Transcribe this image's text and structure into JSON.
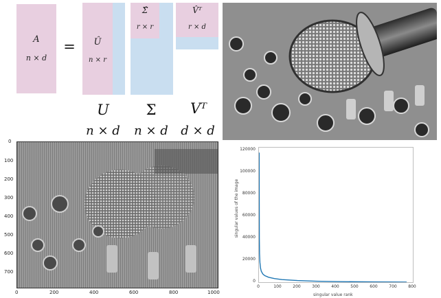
{
  "svd_diagram": {
    "A_label": "A",
    "A_dims": "n × d",
    "equals": "=",
    "U_hat_label": "Û",
    "U_hat_dims": "n × r",
    "Sigma_hat_label": "Σ̂",
    "Sigma_hat_dims": "r × r",
    "V_hat_label": "V̂ᵀ",
    "V_hat_dims": "r × d",
    "U_label": "U",
    "U_dims": "n × d",
    "Sigma_label": "Σ",
    "Sigma_dims": "n × d",
    "V_label": "Vᵀ",
    "V_dims": "d × d",
    "colors": {
      "pink": "#e8cfe0",
      "blue": "#c9def0"
    }
  },
  "photo": {
    "subject": "microphone-on-mixing-console"
  },
  "reconstruction_plot": {
    "y_ticks": [
      "0",
      "100",
      "200",
      "300",
      "400",
      "500",
      "600",
      "700"
    ],
    "x_ticks": [
      "0",
      "200",
      "400",
      "600",
      "800",
      "1000"
    ]
  },
  "chart_data": {
    "type": "line",
    "title": "",
    "xlabel": "singular value rank",
    "ylabel": "singular values of the image",
    "xlim": [
      0,
      800
    ],
    "ylim": [
      0,
      120000
    ],
    "x_ticks": [
      "0",
      "100",
      "200",
      "300",
      "400",
      "500",
      "600",
      "700",
      "800"
    ],
    "y_ticks": [
      "0",
      "20000",
      "40000",
      "60000",
      "80000",
      "100000",
      "120000"
    ],
    "series": [
      {
        "color": "#1f77b4",
        "x": [
          1,
          2,
          3,
          5,
          8,
          12,
          20,
          30,
          50,
          80,
          120,
          200,
          300,
          400,
          500,
          600,
          700,
          768
        ],
        "values": [
          118000,
          40000,
          26000,
          18000,
          13000,
          10000,
          7500,
          6000,
          4500,
          3300,
          2400,
          1500,
          900,
          600,
          400,
          250,
          150,
          80
        ]
      }
    ]
  }
}
